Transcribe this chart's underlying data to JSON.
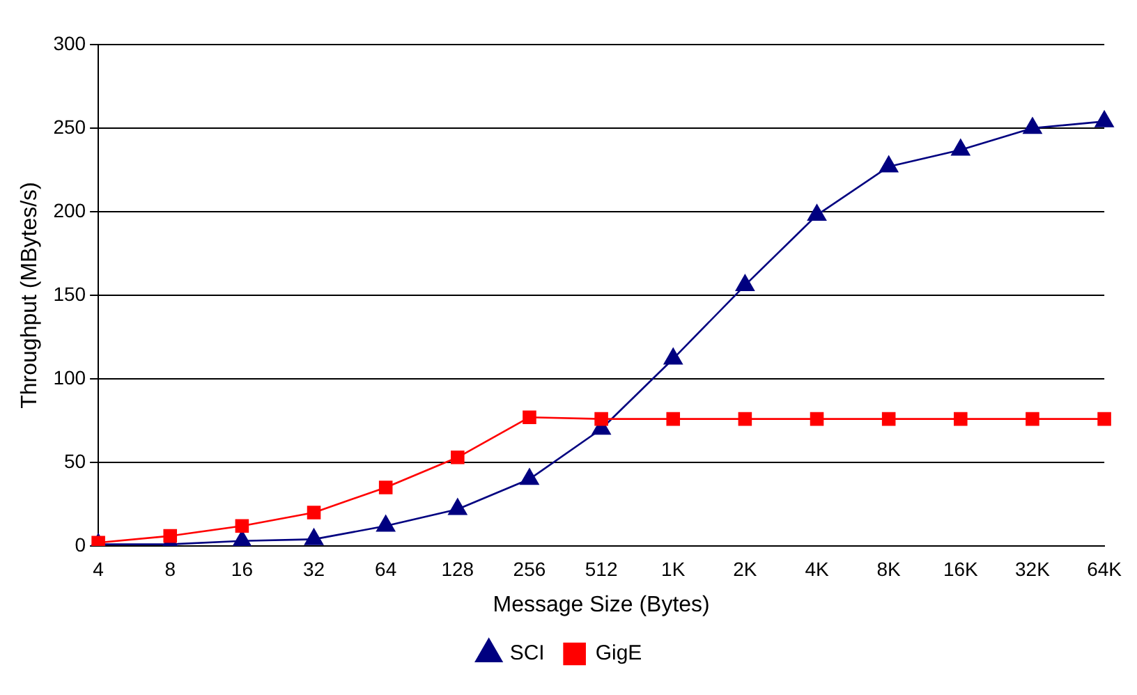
{
  "chart_data": {
    "type": "line",
    "xlabel": "Message Size (Bytes)",
    "ylabel": "Throughput (MBytes/s)",
    "categories": [
      "4",
      "8",
      "16",
      "32",
      "64",
      "128",
      "256",
      "512",
      "1K",
      "2K",
      "4K",
      "8K",
      "16K",
      "32K",
      "64K"
    ],
    "series": [
      {
        "name": "SCI",
        "color": "#000080",
        "marker": "triangle",
        "values": [
          1,
          1,
          3,
          4,
          12,
          22,
          40,
          70,
          112,
          156,
          198,
          227,
          237,
          250,
          254
        ]
      },
      {
        "name": "GigE",
        "color": "#ff0000",
        "marker": "square",
        "values": [
          2,
          6,
          12,
          20,
          35,
          53,
          77,
          76,
          76,
          76,
          76,
          76,
          76,
          76,
          76
        ]
      }
    ],
    "ylim": [
      0,
      300
    ],
    "yticks": [
      0,
      50,
      100,
      150,
      200,
      250,
      300
    ],
    "grid": "y",
    "legend": "bottom",
    "line_style": "solid"
  }
}
